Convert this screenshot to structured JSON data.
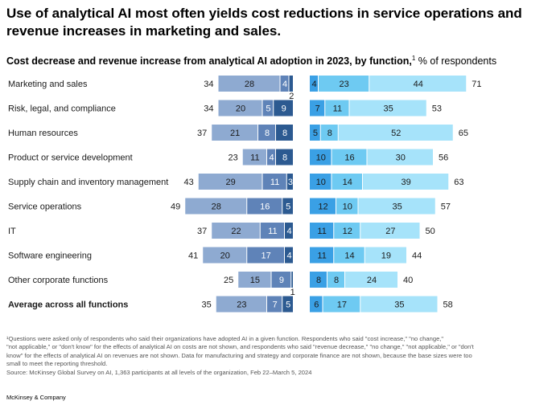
{
  "headline": "Use of analytical AI most often yields cost reductions in service operations and revenue increases in marketing and sales.",
  "subtitle": {
    "main": "Cost decrease and revenue increase from analytical AI adoption in 2023, by function,",
    "sup": "1",
    "unit": " % of respondents"
  },
  "footnote": {
    "lines": [
      "¹Questions were asked only of respondents who said their organizations have adopted AI in a given function. Respondents who said \"cost increase,\" \"no change,\"",
      "\"not applicable,\" or \"don't know\" for the effects of analytical AI on costs are not shown, and respondents who said \"revenue decrease,\" \"no change,\" \"not applicable,\" or \"don't",
      "know\" for the effects of analytical AI on revenues are not shown. Data for manufacturing and strategy and corporate finance are not shown, because the base sizes were too",
      "small to meet the reporting threshold.",
      "Source: McKinsey Global Survey on AI, 1,363 participants at all levels of the organization, Feb 22–March 5, 2024"
    ]
  },
  "brand": "McKinsey & Company",
  "colors": {
    "cost_light": "#8eaad1",
    "cost_mid": "#5f83b8",
    "cost_dark": "#2c5a91",
    "rev_dark": "#3aa0e5",
    "rev_mid": "#6ecaf2",
    "rev_light": "#a6e3fa"
  },
  "chart_data": {
    "type": "bar",
    "categories": [
      "Marketing and sales",
      "Risk, legal, and compliance",
      "Human resources",
      "Product or service development",
      "Supply chain and inventory management",
      "Service operations",
      "IT",
      "Software engineering",
      "Other corporate functions",
      "Average across all functions"
    ],
    "bold_categories": [
      "Average across all functions"
    ],
    "cost_totals": [
      34,
      34,
      37,
      23,
      43,
      49,
      37,
      41,
      25,
      35
    ],
    "cost_segments": [
      [
        28,
        4,
        2
      ],
      [
        20,
        5,
        9
      ],
      [
        21,
        8,
        8
      ],
      [
        11,
        4,
        8
      ],
      [
        29,
        11,
        3
      ],
      [
        28,
        16,
        5
      ],
      [
        22,
        11,
        4
      ],
      [
        20,
        17,
        4
      ],
      [
        15,
        9,
        1
      ],
      [
        23,
        7,
        5
      ]
    ],
    "revenue_totals": [
      71,
      53,
      65,
      56,
      63,
      57,
      50,
      44,
      40,
      58
    ],
    "revenue_segments": [
      [
        4,
        23,
        44
      ],
      [
        7,
        11,
        35
      ],
      [
        5,
        8,
        52
      ],
      [
        10,
        16,
        30
      ],
      [
        10,
        14,
        39
      ],
      [
        12,
        10,
        35
      ],
      [
        11,
        12,
        27
      ],
      [
        11,
        14,
        19
      ],
      [
        8,
        8,
        24
      ],
      [
        6,
        17,
        35
      ]
    ]
  }
}
